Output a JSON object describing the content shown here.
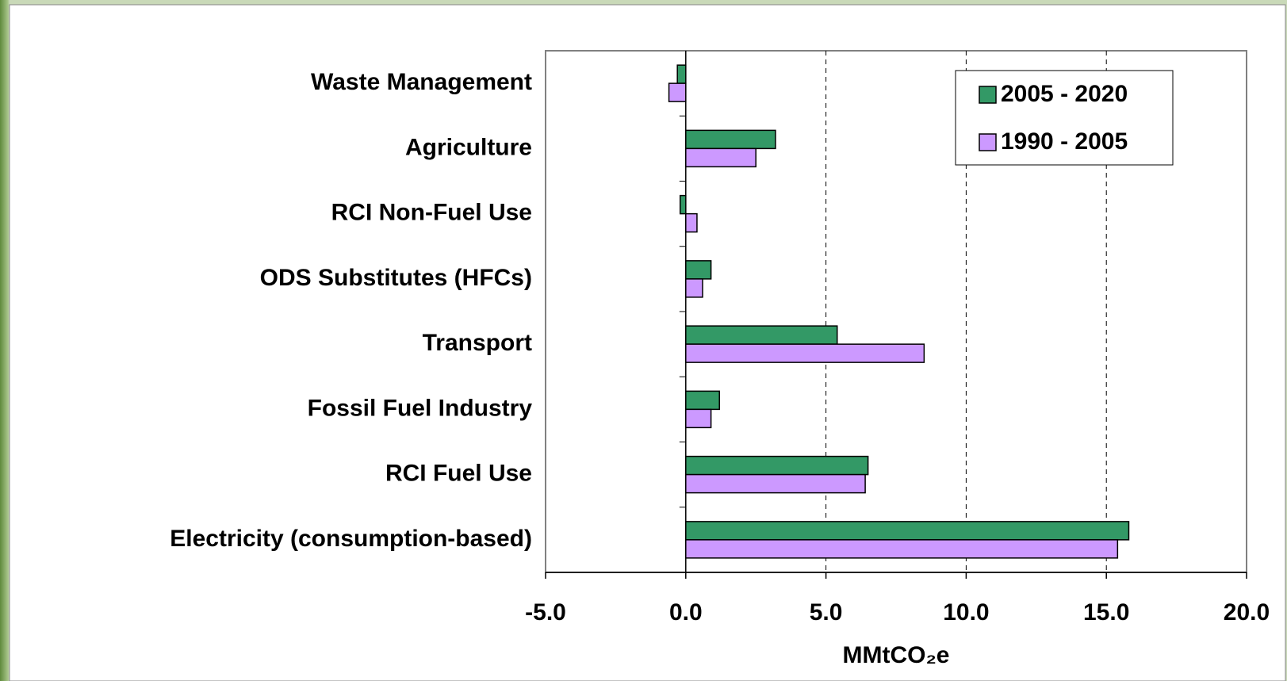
{
  "chart_data": {
    "type": "barh",
    "categories": [
      "Waste Management",
      "Agriculture",
      "RCI Non-Fuel Use",
      "ODS Substitutes (HFCs)",
      "Transport",
      "Fossil Fuel Industry",
      "RCI Fuel Use",
      "Electricity (consumption-based)"
    ],
    "series": [
      {
        "name": "2005 - 2020",
        "color": "#339966",
        "values": [
          -0.3,
          3.2,
          -0.2,
          0.9,
          5.4,
          1.2,
          6.5,
          15.8
        ]
      },
      {
        "name": "1990 - 2005",
        "color": "#cc99ff",
        "values": [
          -0.6,
          2.5,
          0.4,
          0.6,
          8.5,
          0.9,
          6.4,
          15.4
        ]
      }
    ],
    "xlabel": "MMtCO₂e",
    "xlim": [
      -5,
      20
    ],
    "xticks": [
      {
        "value": -5,
        "label": "-5.0"
      },
      {
        "value": 0,
        "label": "0.0"
      },
      {
        "value": 5,
        "label": "5.0"
      },
      {
        "value": 10,
        "label": "10.0"
      },
      {
        "value": 15,
        "label": "15.0"
      },
      {
        "value": 20,
        "label": "20.0"
      }
    ],
    "grid": true,
    "legend": "top-right"
  }
}
